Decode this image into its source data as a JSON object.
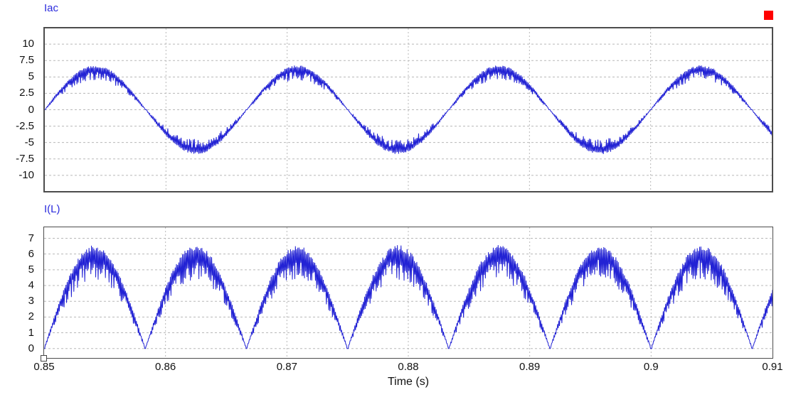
{
  "window": {
    "background": "#ffffff",
    "indicator_marker_color": "#ff0000"
  },
  "chart_data": [
    {
      "type": "line",
      "title": "Iac",
      "color": "#2222d4",
      "title_color": "#2b2bdd",
      "grid": {
        "horizontal": "dashed",
        "vertical": "dashed",
        "color": "#b8b8b8"
      },
      "x": {
        "min": 0.85,
        "max": 0.91,
        "ticks": [
          0.85,
          0.86,
          0.87,
          0.88,
          0.89,
          0.9,
          0.91
        ],
        "tick_labels": [
          "0.85",
          "0.86",
          "0.87",
          "0.88",
          "0.89",
          "0.9",
          "0.91"
        ],
        "label": "Time (s)"
      },
      "y": {
        "ticks": [
          10,
          7.5,
          5,
          2.5,
          0,
          -2.5,
          -5,
          -7.5,
          -10
        ],
        "tick_labels": [
          "10",
          "7.5",
          "5",
          "2.5",
          "0",
          "-2.5",
          "-5",
          "-7.5",
          "-10"
        ],
        "lim": [
          -12.4,
          12.4
        ]
      },
      "waveform": {
        "description": "60 Hz sinusoid with high-frequency switching ripple band",
        "fundamental_hz": 60,
        "phase": "zero crossing, ascending, at t = 0.85 s",
        "upper_envelope_peak": 6.6,
        "lower_envelope_peak": 5.15,
        "approx_peak_value": 6.6,
        "ripple_pitch_s": 0.0001,
        "crossover_clamp": 0.03,
        "zero_crossings_s": [
          0.85,
          0.858333,
          0.866667,
          0.875,
          0.883333,
          0.891667,
          0.9,
          0.908333
        ],
        "value_at_right_edge": -3.8
      }
    },
    {
      "type": "line",
      "title": "I(L)",
      "color": "#2222d4",
      "title_color": "#2b2bdd",
      "grid": {
        "horizontal": "dashed",
        "vertical": "dashed",
        "color": "#b8b8b8"
      },
      "x": {
        "min": 0.85,
        "max": 0.91,
        "ticks": [
          0.85,
          0.86,
          0.87,
          0.88,
          0.89,
          0.9,
          0.91
        ],
        "tick_labels": [
          "0.85",
          "0.86",
          "0.87",
          "0.88",
          "0.89",
          "0.9",
          "0.91"
        ],
        "label": "Time (s)"
      },
      "y": {
        "ticks": [
          7,
          6,
          5,
          4,
          3,
          2,
          1,
          0
        ],
        "tick_labels": [
          "7",
          "6",
          "5",
          "4",
          "3",
          "2",
          "1",
          "0"
        ],
        "lim": [
          -0.6,
          7.7
        ]
      },
      "waveform": {
        "description": "Rectified 60 Hz sinusoid (120 Hz humps) with high-frequency switching ripple band",
        "fundamental_hz": 60,
        "rectified": true,
        "upper_envelope_peak": 6.4,
        "lower_envelope_peak": 5.0,
        "approx_peak_value": 6.4,
        "ripple_pitch_s": 0.0001,
        "crossover_clamp": 0.02,
        "valleys_s": [
          0.85,
          0.858333,
          0.866667,
          0.875,
          0.883333,
          0.891667,
          0.9,
          0.908333
        ],
        "value_at_right_edge": 3.76
      }
    }
  ]
}
